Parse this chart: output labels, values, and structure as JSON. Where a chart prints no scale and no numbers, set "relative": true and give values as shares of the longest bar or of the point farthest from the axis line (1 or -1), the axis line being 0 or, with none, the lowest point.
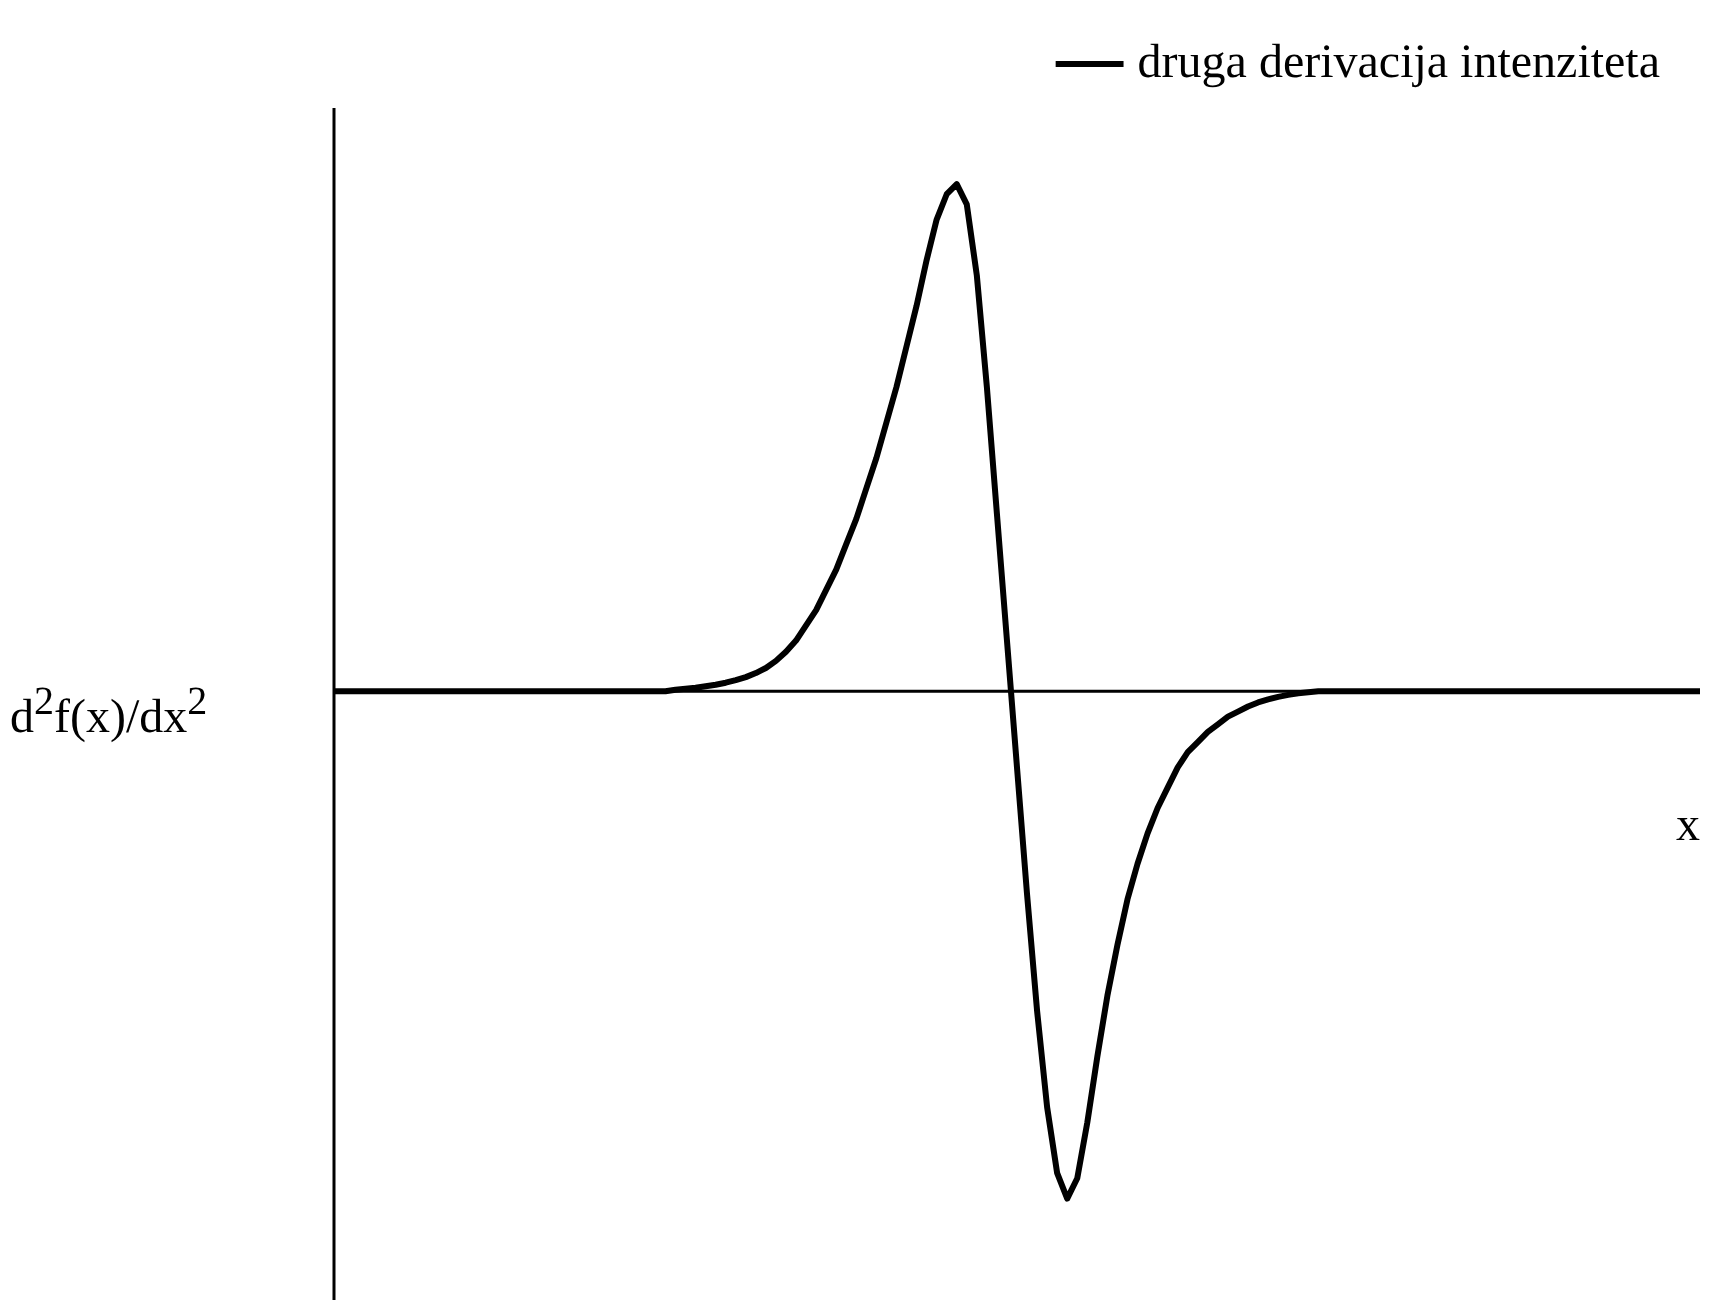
{
  "chart_data": {
    "type": "line",
    "relative": true,
    "xlabel": "x",
    "ylabel": "d$^{2}$f(x)/dx$^{2}$",
    "legend": "top right",
    "marker": "none",
    "line_style": "solid",
    "categories": [
      null,
      null,
      null,
      null,
      null,
      null,
      null,
      null,
      null,
      null,
      null,
      null,
      null,
      null,
      null,
      null,
      null,
      null,
      null,
      null,
      null,
      null,
      null,
      null,
      null,
      null,
      null,
      null,
      null,
      null,
      null,
      null,
      null,
      null,
      null,
      null,
      null,
      null,
      null,
      null,
      null,
      null,
      null,
      null,
      null,
      null,
      null,
      null,
      null,
      null,
      null,
      null,
      null,
      null,
      null,
      null,
      null,
      null,
      null,
      null,
      null,
      null,
      null,
      null,
      null,
      null,
      null,
      null,
      null,
      null,
      null,
      null,
      null,
      null,
      null,
      null,
      null,
      null,
      null,
      null,
      null,
      null,
      null,
      null,
      null,
      null,
      null,
      null,
      null,
      null,
      null,
      null,
      null,
      null,
      null,
      null,
      null,
      null,
      null,
      null,
      null,
      null,
      null,
      null,
      null,
      null,
      null,
      null,
      null,
      null,
      null,
      null,
      null,
      null,
      null,
      null,
      null,
      null,
      null,
      null,
      null,
      null,
      null,
      null,
      null,
      null,
      null,
      null,
      null,
      null,
      null,
      null,
      null,
      null,
      null,
      null,
      null
    ],
    "series": [
      {
        "name": "druga derivacija intenziteta",
        "color": "#000000",
        "values": [
          0,
          0,
          0,
          0,
          0,
          0,
          0,
          0,
          0,
          0,
          0,
          0,
          0,
          0,
          0,
          0,
          0,
          0,
          0,
          0,
          0,
          0,
          0,
          0,
          0,
          0,
          0,
          0,
          0,
          0,
          0,
          0,
          0,
          0,
          0.003,
          0.005,
          0.007,
          0.01,
          0.013,
          0.017,
          0.022,
          0.028,
          0.036,
          0.046,
          0.06,
          0.078,
          0.1,
          0.13,
          0.16,
          0.2,
          0.24,
          0.29,
          0.34,
          0.4,
          0.46,
          0.53,
          0.6,
          0.68,
          0.76,
          0.85,
          0.93,
          0.98,
          1.0,
          0.96,
          0.82,
          0.6,
          0.35,
          0.1,
          -0.15,
          -0.4,
          -0.63,
          -0.82,
          -0.95,
          -1.0,
          -0.96,
          -0.85,
          -0.72,
          -0.6,
          -0.5,
          -0.41,
          -0.34,
          -0.28,
          -0.23,
          -0.19,
          -0.15,
          -0.12,
          -0.1,
          -0.08,
          -0.065,
          -0.05,
          -0.04,
          -0.03,
          -0.022,
          -0.016,
          -0.011,
          -0.007,
          -0.004,
          -0.002,
          0,
          0,
          0,
          0,
          0,
          0,
          0,
          0,
          0,
          0,
          0,
          0,
          0,
          0,
          0,
          0,
          0,
          0,
          0,
          0,
          0,
          0,
          0,
          0,
          0,
          0,
          0,
          0,
          0,
          0,
          0,
          0,
          0,
          0,
          0,
          0,
          0,
          0,
          0
        ]
      }
    ]
  }
}
